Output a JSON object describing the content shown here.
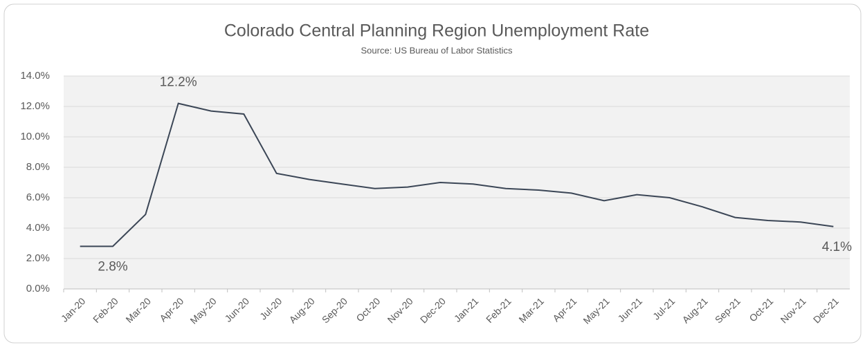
{
  "chart_data": {
    "type": "line",
    "title": "Colorado Central Planning Region Unemployment Rate",
    "subtitle": "Source: US Bureau of Labor Statistics",
    "categories": [
      "Jan-20",
      "Feb-20",
      "Mar-20",
      "Apr-20",
      "May-20",
      "Jun-20",
      "Jul-20",
      "Aug-20",
      "Sep-20",
      "Oct-20",
      "Nov-20",
      "Dec-20",
      "Jan-21",
      "Feb-21",
      "Mar-21",
      "Apr-21",
      "May-21",
      "Jun-21",
      "Jul-21",
      "Aug-21",
      "Sep-21",
      "Oct-21",
      "Nov-21",
      "Dec-21"
    ],
    "values": [
      2.8,
      2.8,
      4.9,
      12.2,
      11.7,
      11.5,
      7.6,
      7.2,
      6.9,
      6.6,
      6.7,
      7.0,
      6.9,
      6.6,
      6.5,
      6.3,
      5.8,
      6.2,
      6.0,
      5.4,
      4.7,
      4.5,
      4.4,
      4.1
    ],
    "value_labels": [
      null,
      "2.8%",
      null,
      "12.2%",
      null,
      null,
      null,
      null,
      null,
      null,
      null,
      null,
      null,
      null,
      null,
      null,
      null,
      null,
      null,
      null,
      null,
      null,
      null,
      "4.1%"
    ],
    "color": "#3b4656",
    "ylim": [
      0,
      14
    ],
    "yticks": [
      {
        "value": 0,
        "label": "0.0%"
      },
      {
        "value": 2,
        "label": "2.0%"
      },
      {
        "value": 4,
        "label": "4.0%"
      },
      {
        "value": 6,
        "label": "6.0%"
      },
      {
        "value": 8,
        "label": "8.0%"
      },
      {
        "value": 10,
        "label": "10.0%"
      },
      {
        "value": 12,
        "label": "12.0%"
      },
      {
        "value": 14,
        "label": "14.0%"
      }
    ],
    "grid": true
  }
}
